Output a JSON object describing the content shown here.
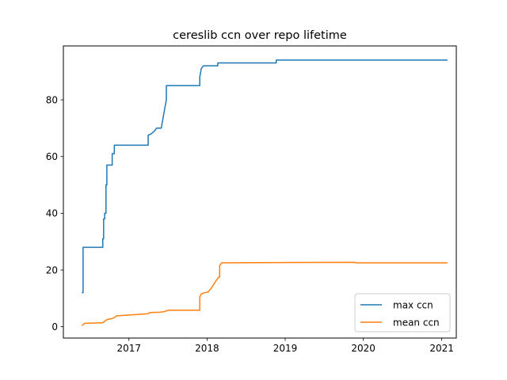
{
  "chart_data": {
    "type": "line",
    "title": "cereslib ccn over repo lifetime",
    "xlabel": "",
    "ylabel": "",
    "x_axis": "date",
    "xlim": [
      "2016-03-01",
      "2021-03-10"
    ],
    "ylim": [
      -4,
      99
    ],
    "x_ticks": [
      {
        "value": "2017-01-01",
        "label": "2017"
      },
      {
        "value": "2018-01-01",
        "label": "2018"
      },
      {
        "value": "2019-01-01",
        "label": "2019"
      },
      {
        "value": "2020-01-01",
        "label": "2020"
      },
      {
        "value": "2021-01-01",
        "label": "2021"
      }
    ],
    "y_ticks": [
      0,
      20,
      40,
      60,
      80
    ],
    "grid": false,
    "legend_position": "lower-right",
    "series": [
      {
        "name": "max ccn",
        "color": "#1f77b4",
        "points": [
          [
            "2016-05-29",
            12
          ],
          [
            "2016-06-01",
            12
          ],
          [
            "2016-06-01",
            28
          ],
          [
            "2016-09-01",
            28
          ],
          [
            "2016-09-01",
            31
          ],
          [
            "2016-09-05",
            31
          ],
          [
            "2016-09-05",
            38
          ],
          [
            "2016-09-10",
            38
          ],
          [
            "2016-09-10",
            40
          ],
          [
            "2016-09-16",
            40
          ],
          [
            "2016-09-16",
            50
          ],
          [
            "2016-09-20",
            50
          ],
          [
            "2016-09-20",
            57
          ],
          [
            "2016-10-15",
            57
          ],
          [
            "2016-10-15",
            61
          ],
          [
            "2016-10-25",
            61
          ],
          [
            "2016-10-25",
            64
          ],
          [
            "2017-04-01",
            64
          ],
          [
            "2017-04-01",
            67.5
          ],
          [
            "2017-04-15",
            68
          ],
          [
            "2017-05-01",
            69
          ],
          [
            "2017-05-10",
            70
          ],
          [
            "2017-06-01",
            70
          ],
          [
            "2017-06-20",
            78
          ],
          [
            "2017-06-25",
            80
          ],
          [
            "2017-06-25",
            85
          ],
          [
            "2017-11-28",
            85
          ],
          [
            "2017-11-28",
            88
          ],
          [
            "2017-12-05",
            91
          ],
          [
            "2017-12-15",
            92
          ],
          [
            "2018-02-20",
            92
          ],
          [
            "2018-02-20",
            93
          ],
          [
            "2018-11-20",
            93
          ],
          [
            "2018-11-20",
            94
          ],
          [
            "2021-01-25",
            94
          ]
        ]
      },
      {
        "name": "mean ccn",
        "color": "#ff7f0e",
        "points": [
          [
            "2016-05-29",
            0.5
          ],
          [
            "2016-06-05",
            1
          ],
          [
            "2016-06-10",
            1.2
          ],
          [
            "2016-09-01",
            1.4
          ],
          [
            "2016-09-20",
            2.5
          ],
          [
            "2016-10-20",
            3
          ],
          [
            "2016-11-05",
            3.8
          ],
          [
            "2017-03-20",
            4.5
          ],
          [
            "2017-04-01",
            4.6
          ],
          [
            "2017-04-10",
            5
          ],
          [
            "2017-05-25",
            5.1
          ],
          [
            "2017-06-15",
            5.3
          ],
          [
            "2017-07-05",
            5.8
          ],
          [
            "2017-11-28",
            5.8
          ],
          [
            "2017-11-28",
            10.5
          ],
          [
            "2017-12-05",
            11.5
          ],
          [
            "2017-12-20",
            12
          ],
          [
            "2018-01-05",
            12.2
          ],
          [
            "2018-01-20",
            13.5
          ],
          [
            "2018-02-10",
            16
          ],
          [
            "2018-02-25",
            17.5
          ],
          [
            "2018-03-01",
            17.5
          ],
          [
            "2018-03-01",
            21.5
          ],
          [
            "2018-03-10",
            22.5
          ],
          [
            "2018-09-01",
            22.6
          ],
          [
            "2019-11-20",
            22.7
          ],
          [
            "2019-12-01",
            22.5
          ],
          [
            "2021-01-25",
            22.5
          ]
        ]
      }
    ]
  }
}
